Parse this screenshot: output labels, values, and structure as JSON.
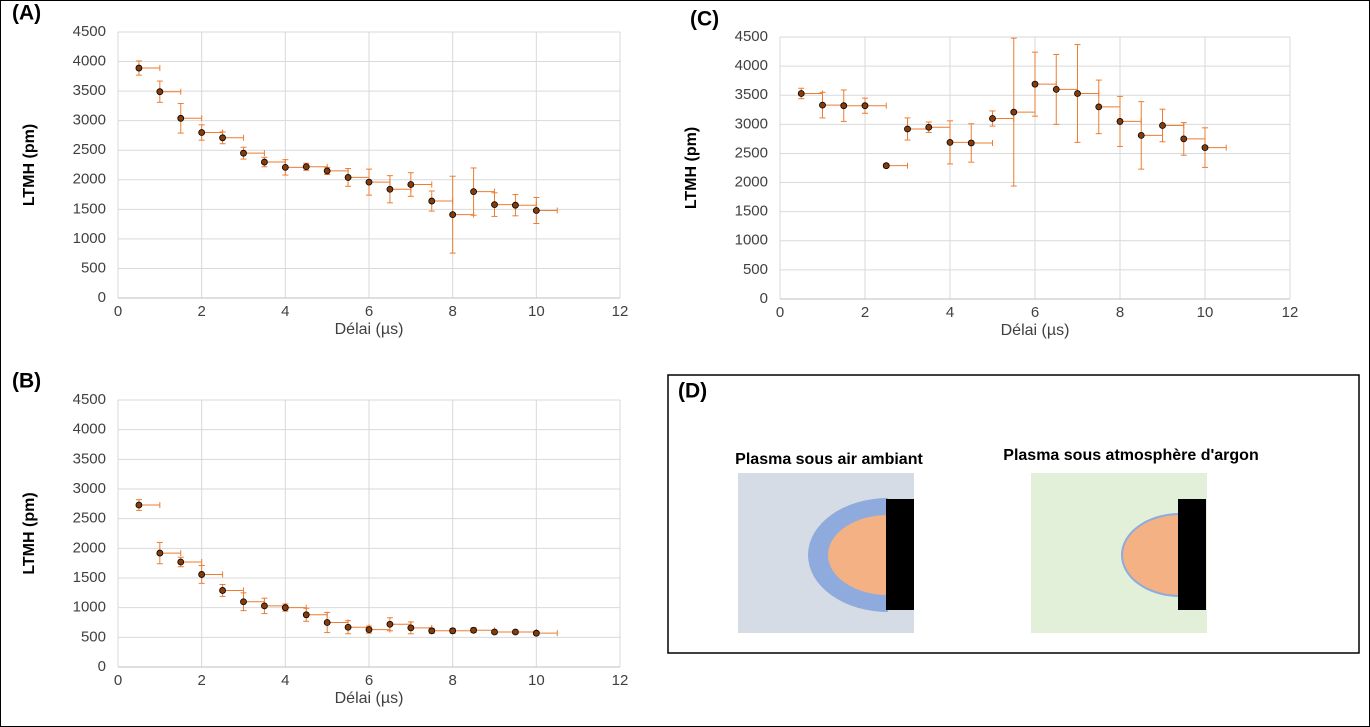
{
  "chart_data": [
    {
      "type": "scatter",
      "label": "(A)",
      "xlabel": "Délai (µs)",
      "ylabel": "LTMH (pm)",
      "x": [
        0.5,
        1,
        1.5,
        2,
        2.5,
        3,
        3.5,
        4,
        4.5,
        5,
        5.5,
        6,
        6.5,
        7,
        7.5,
        8,
        8.5,
        9,
        9.5,
        10
      ],
      "values": [
        3890,
        3490,
        3040,
        2800,
        2710,
        2450,
        2300,
        2210,
        2220,
        2150,
        2040,
        1960,
        1840,
        1920,
        1640,
        1410,
        1800,
        1580,
        1570,
        1480
      ],
      "yerr": [
        120,
        180,
        250,
        130,
        100,
        100,
        80,
        130,
        60,
        60,
        150,
        220,
        230,
        200,
        170,
        650,
        400,
        200,
        180,
        220
      ],
      "xerr": [
        0.5,
        0.5,
        0.5,
        0.5,
        0.5,
        0.5,
        0.5,
        0.5,
        0.5,
        0.5,
        0.5,
        0.5,
        0.5,
        0.5,
        0.5,
        0.5,
        0.5,
        0.5,
        0.5,
        0.5
      ],
      "color": "#ED7D31",
      "marker_color": "#843C0C",
      "xlim": [
        0,
        12
      ],
      "xticks": [
        0,
        2,
        4,
        6,
        8,
        10,
        12
      ],
      "ylim": [
        0,
        4500
      ],
      "yticks": [
        0,
        500,
        1000,
        1500,
        2000,
        2500,
        3000,
        3500,
        4000,
        4500
      ],
      "grid": true
    },
    {
      "type": "scatter",
      "label": "(B)",
      "xlabel": "Délai (µs)",
      "ylabel": "LTMH (pm)",
      "x": [
        0.5,
        1,
        1.5,
        2,
        2.5,
        3,
        3.5,
        4,
        4.5,
        5,
        5.5,
        6,
        6.5,
        7,
        7.5,
        8,
        8.5,
        9,
        9.5,
        10
      ],
      "values": [
        2730,
        1920,
        1770,
        1560,
        1290,
        1100,
        1030,
        1000,
        880,
        750,
        670,
        630,
        720,
        660,
        610,
        610,
        620,
        590,
        590,
        570
      ],
      "yerr": [
        90,
        180,
        80,
        150,
        100,
        150,
        130,
        60,
        110,
        170,
        110,
        60,
        110,
        100,
        40,
        40,
        40,
        30,
        30,
        30
      ],
      "xerr": [
        0.5,
        0.5,
        0.5,
        0.5,
        0.5,
        0.5,
        0.5,
        0.5,
        0.5,
        0.5,
        0.5,
        0.5,
        0.5,
        0.5,
        0.5,
        0.5,
        0.5,
        0.5,
        0.5,
        0.5
      ],
      "color": "#ED7D31",
      "marker_color": "#843C0C",
      "xlim": [
        0,
        12
      ],
      "xticks": [
        0,
        2,
        4,
        6,
        8,
        10,
        12
      ],
      "ylim": [
        0,
        4500
      ],
      "yticks": [
        0,
        500,
        1000,
        1500,
        2000,
        2500,
        3000,
        3500,
        4000,
        4500
      ],
      "grid": true
    },
    {
      "type": "scatter",
      "label": "(C)",
      "xlabel": "Délai (µs)",
      "ylabel": "LTMH (pm)",
      "x": [
        0.5,
        1,
        1.5,
        2,
        2.5,
        3,
        3.5,
        4,
        4.5,
        5,
        5.5,
        6,
        6.5,
        7,
        7.5,
        8,
        8.5,
        9,
        9.5,
        10
      ],
      "values": [
        3530,
        3330,
        3320,
        3320,
        2290,
        2920,
        2950,
        2690,
        2680,
        3100,
        3210,
        3690,
        3600,
        3530,
        3300,
        3050,
        2810,
        2980,
        2750,
        2600
      ],
      "yerr": [
        90,
        220,
        270,
        130,
        30,
        190,
        90,
        370,
        330,
        130,
        1270,
        550,
        600,
        840,
        460,
        430,
        580,
        280,
        280,
        340
      ],
      "xerr": [
        0.5,
        0.5,
        0.5,
        0.5,
        0.5,
        0.5,
        0.5,
        0.5,
        0.5,
        0.5,
        0.5,
        0.5,
        0.5,
        0.5,
        0.5,
        0.5,
        0.5,
        0.5,
        0.5,
        0.5
      ],
      "color": "#ED7D31",
      "marker_color": "#843C0C",
      "xlim": [
        0,
        12
      ],
      "xticks": [
        0,
        2,
        4,
        6,
        8,
        10,
        12
      ],
      "ylim": [
        0,
        4500
      ],
      "yticks": [
        0,
        500,
        1000,
        1500,
        2000,
        2500,
        3000,
        3500,
        4000,
        4500
      ],
      "grid": true
    }
  ],
  "diagram": {
    "label": "(D)",
    "panels": [
      {
        "title": "Plasma sous air ambiant"
      },
      {
        "title": "Plasma sous atmosphère d'argon"
      }
    ]
  }
}
